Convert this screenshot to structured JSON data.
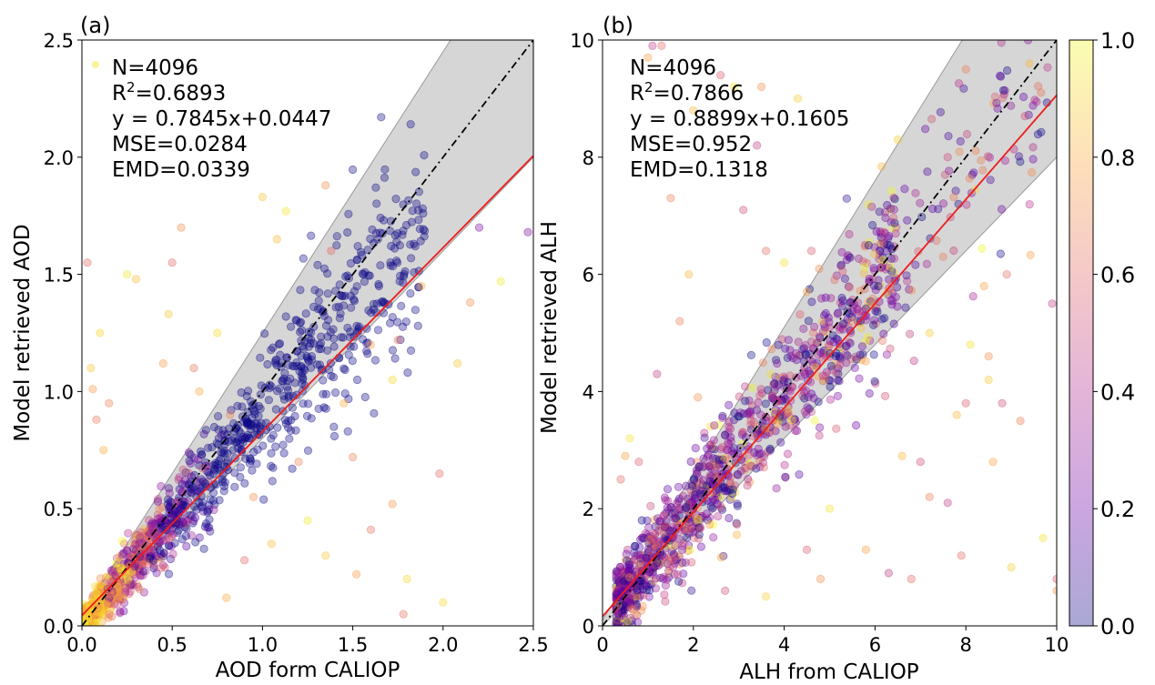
{
  "chart_data": [
    {
      "type": "scatter",
      "panel_label": "(a)",
      "xlabel": "AOD form CALIOP",
      "ylabel": "Model retrieved  AOD",
      "xlim": [
        0,
        2.5
      ],
      "ylim": [
        0,
        2.5
      ],
      "xticks": [
        "0.0",
        "0.5",
        "1.0",
        "1.5",
        "2.0",
        "2.5"
      ],
      "yticks": [
        "0.0",
        "0.5",
        "1.0",
        "1.5",
        "2.0",
        "2.5"
      ],
      "stats": {
        "n": "N=4096",
        "r2_prefix": "R",
        "r2_sup": "2",
        "r2_value": "=0.6893",
        "equation": "y = 0.7845x+0.0447",
        "mse": "MSE=0.0284",
        "emd": "EMD=0.0339"
      },
      "identity_line": {
        "slope": 1,
        "intercept": 0,
        "style": "dash-dot",
        "color": "#000000"
      },
      "fit_line": {
        "slope": 0.7845,
        "intercept": 0.0447,
        "color": "#ee1c1c"
      },
      "band": {
        "upper_slope": 1.2,
        "lower_slope": 0.8,
        "intercept": 0.05,
        "color": "#d6d6d6"
      },
      "outliers": [
        [
          0.03,
          1.55
        ],
        [
          0.05,
          1.1
        ],
        [
          0.06,
          1.01
        ],
        [
          0.08,
          0.88
        ],
        [
          0.1,
          1.25
        ],
        [
          0.12,
          0.75
        ],
        [
          0.15,
          0.95
        ],
        [
          0.25,
          1.5
        ],
        [
          0.3,
          1.48
        ],
        [
          0.55,
          1.7
        ],
        [
          0.5,
          1.55
        ],
        [
          0.48,
          1.33
        ],
        [
          0.45,
          1.12
        ],
        [
          0.62,
          1.1
        ],
        [
          0.75,
          1.25
        ],
        [
          0.65,
          1.0
        ],
        [
          0.82,
          0.9
        ],
        [
          1.13,
          1.77
        ],
        [
          1.08,
          1.65
        ],
        [
          1.35,
          1.88
        ],
        [
          1.38,
          1.6
        ],
        [
          1.0,
          1.83
        ],
        [
          1.6,
          1.2
        ],
        [
          1.75,
          1.22
        ],
        [
          1.72,
          1.05
        ],
        [
          1.88,
          1.45
        ],
        [
          2.2,
          1.7
        ],
        [
          2.32,
          1.47
        ],
        [
          2.47,
          1.68
        ],
        [
          2.15,
          1.38
        ],
        [
          1.98,
          0.65
        ],
        [
          2.08,
          1.12
        ],
        [
          1.72,
          0.52
        ],
        [
          1.6,
          0.41
        ],
        [
          1.8,
          0.2
        ],
        [
          1.45,
          0.95
        ],
        [
          1.2,
          0.7
        ],
        [
          1.25,
          0.45
        ],
        [
          1.05,
          0.35
        ],
        [
          0.95,
          0.55
        ],
        [
          0.9,
          0.28
        ],
        [
          1.35,
          0.3
        ],
        [
          1.52,
          0.22
        ],
        [
          1.78,
          0.05
        ],
        [
          2.0,
          0.1
        ],
        [
          0.8,
          0.12
        ],
        [
          1.5,
          0.72
        ]
      ],
      "colorbar": null
    },
    {
      "type": "scatter",
      "panel_label": "(b)",
      "xlabel": "ALH from CALIOP",
      "ylabel": "Model retrieved  ALH",
      "xlim": [
        0,
        10
      ],
      "ylim": [
        0,
        10
      ],
      "xticks": [
        "0",
        "2",
        "4",
        "6",
        "8",
        "10"
      ],
      "yticks": [
        "0",
        "2",
        "4",
        "6",
        "8",
        "10"
      ],
      "stats": {
        "n": "N=4096",
        "r2_prefix": "R",
        "r2_sup": "2",
        "r2_value": "=0.7866",
        "equation": "y = 0.8899x+0.1605",
        "mse": "MSE=0.952",
        "emd": "EMD=0.1318"
      },
      "identity_line": {
        "slope": 1,
        "intercept": 0,
        "style": "dash-dot",
        "color": "#000000"
      },
      "fit_line": {
        "slope": 0.8899,
        "intercept": 0.1605,
        "color": "#ee1c1c"
      },
      "band": {
        "upper_slope": 1.25,
        "lower_slope": 0.8,
        "intercept": 0.1,
        "color": "#d6d6d6"
      },
      "outliers": [
        [
          1.1,
          9.9
        ],
        [
          1.3,
          9.9
        ],
        [
          1.0,
          9.7
        ],
        [
          2.9,
          9.2
        ],
        [
          2.6,
          9.4
        ],
        [
          3.5,
          9.2
        ],
        [
          4.3,
          9.0
        ],
        [
          3.1,
          7.1
        ],
        [
          1.5,
          7.3
        ],
        [
          2.0,
          8.8
        ],
        [
          3.4,
          8.2
        ],
        [
          3.6,
          6.4
        ],
        [
          4.5,
          5.7
        ],
        [
          4.0,
          6.2
        ],
        [
          4.6,
          6.4
        ],
        [
          5.5,
          5.2
        ],
        [
          6.5,
          8.3
        ],
        [
          7.6,
          8.0
        ],
        [
          8.0,
          9.5
        ],
        [
          9.4,
          9.6
        ],
        [
          9.9,
          5.5
        ],
        [
          8.9,
          6.0
        ],
        [
          8.4,
          5.8
        ],
        [
          8.1,
          4.8
        ],
        [
          8.0,
          3.8
        ],
        [
          8.5,
          4.6
        ],
        [
          8.5,
          4.2
        ],
        [
          8.8,
          3.8
        ],
        [
          9.2,
          3.5
        ],
        [
          7.8,
          3.6
        ],
        [
          7.6,
          2.1
        ],
        [
          7.9,
          1.2
        ],
        [
          8.6,
          2.8
        ],
        [
          9.7,
          1.5
        ],
        [
          10.0,
          0.8
        ],
        [
          10.0,
          0.6
        ],
        [
          9.0,
          1.0
        ],
        [
          7.0,
          2.8
        ],
        [
          7.2,
          2.2
        ],
        [
          6.6,
          2.9
        ],
        [
          6.3,
          0.9
        ],
        [
          6.8,
          0.8
        ],
        [
          5.8,
          1.3
        ],
        [
          5.0,
          2.0
        ],
        [
          4.5,
          1.3
        ],
        [
          4.8,
          0.8
        ],
        [
          3.6,
          0.5
        ],
        [
          2.7,
          0.6
        ],
        [
          1.7,
          5.2
        ],
        [
          1.9,
          6.0
        ],
        [
          1.2,
          4.3
        ],
        [
          0.4,
          2.5
        ],
        [
          0.5,
          2.9
        ],
        [
          0.6,
          3.2
        ],
        [
          0.8,
          2.8
        ],
        [
          2.1,
          3.9
        ],
        [
          7.2,
          5.0
        ],
        [
          9.3,
          8.7
        ],
        [
          7.5,
          6.3
        ]
      ],
      "colorbar": {
        "ticks": [
          "0.0",
          "0.2",
          "0.4",
          "0.6",
          "0.8",
          "1.0"
        ],
        "range": [
          0,
          1
        ],
        "colormap": "plasma",
        "alpha": 0.35
      }
    }
  ]
}
